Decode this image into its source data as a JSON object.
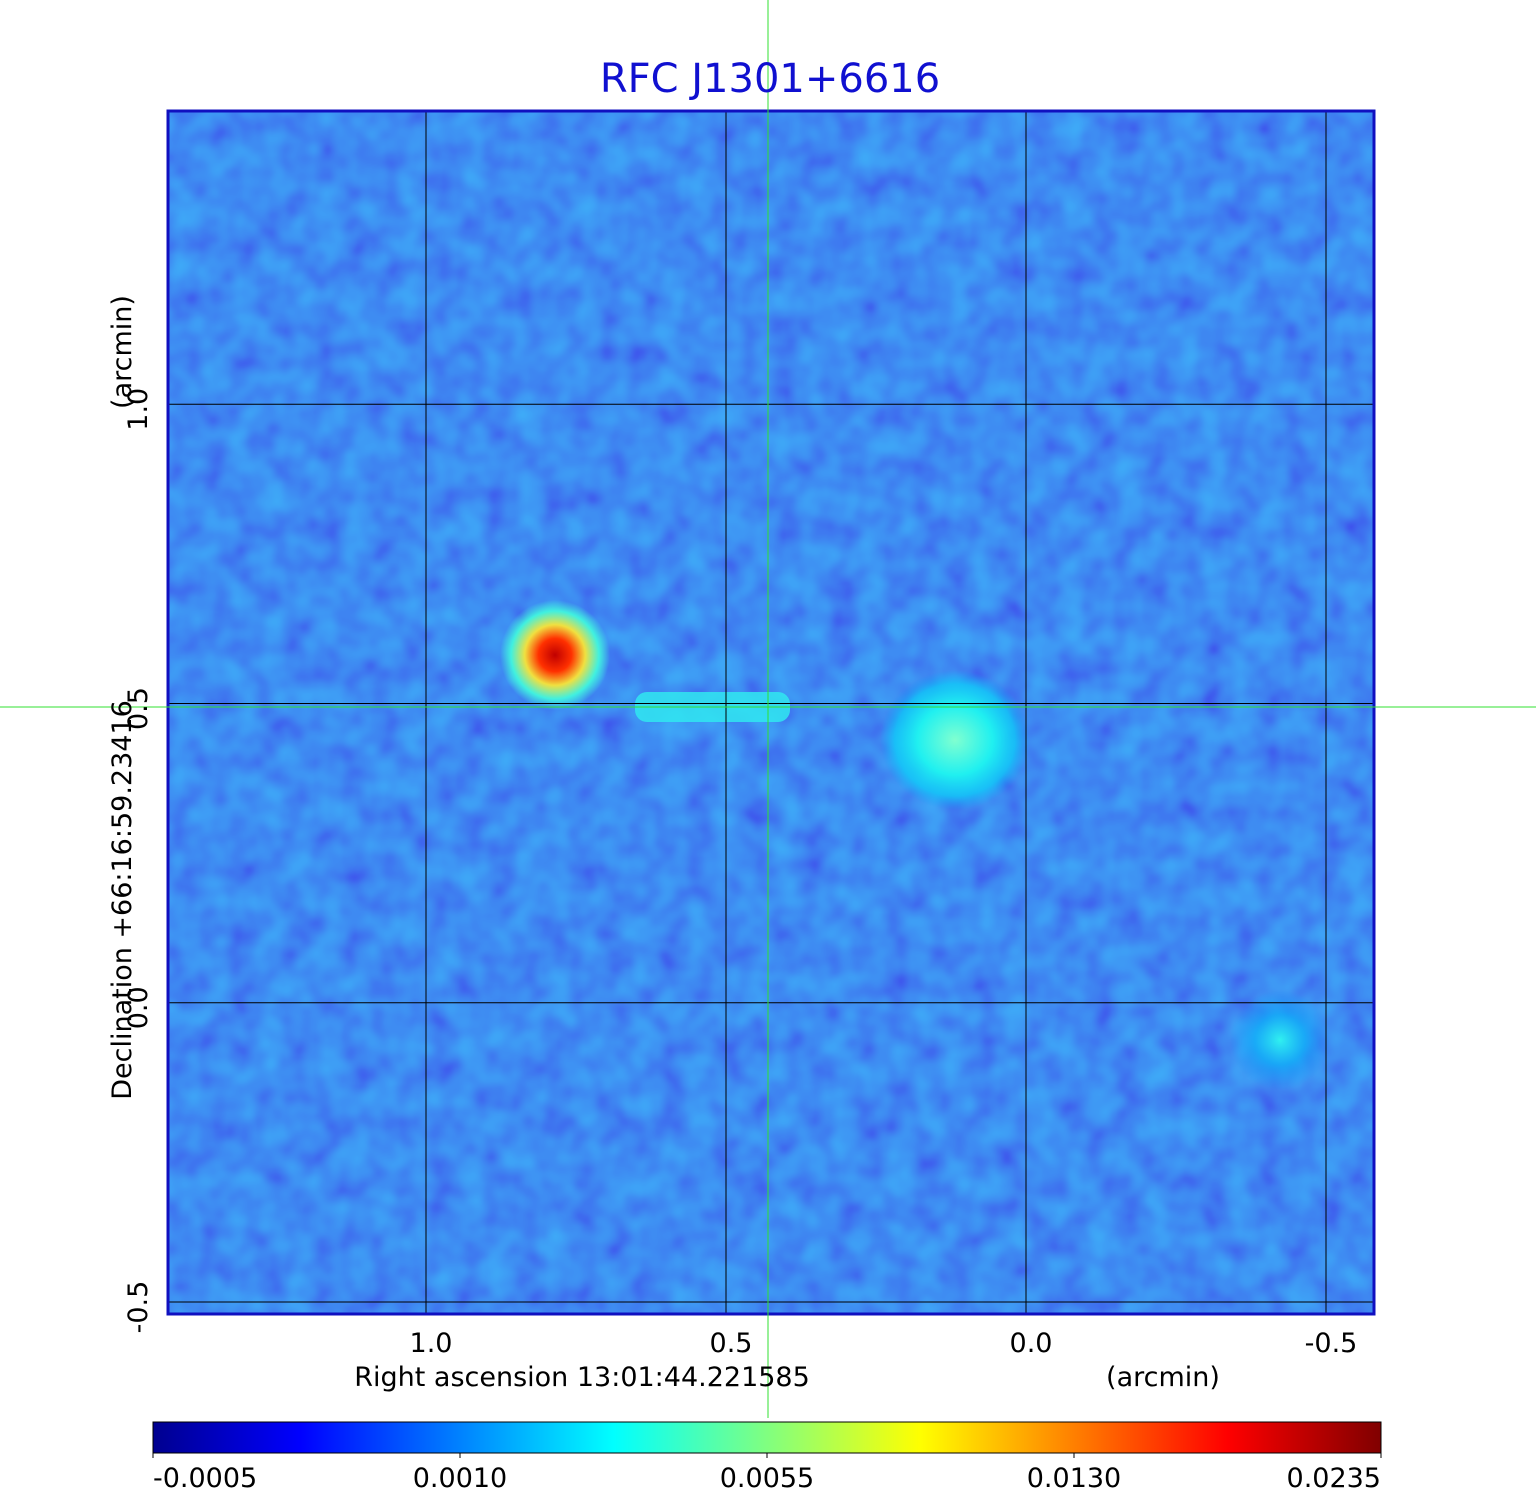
{
  "chart_data": {
    "type": "image",
    "title": "RFC J1301+6616",
    "x_label": "Right ascension  13:01:44.221585",
    "x_unit": "(arcmin)",
    "y_label": "Declination  +66:16:59.23416",
    "y_unit": "(arcmin)",
    "xlim": [
      1.43,
      -0.58
    ],
    "ylim": [
      -0.52,
      1.49
    ],
    "xticks": [
      {
        "value": 1,
        "label": "1.0"
      },
      {
        "value": 0.5,
        "label": "0.5"
      },
      {
        "value": 0,
        "label": "0.0"
      },
      {
        "value": -0.5,
        "label": "-0.5"
      }
    ],
    "yticks": [
      {
        "value": -0.5,
        "label": "-0.5"
      },
      {
        "value": 0,
        "label": "0.0"
      },
      {
        "value": 0.5,
        "label": "0.5"
      },
      {
        "value": 1,
        "label": "1.0"
      }
    ],
    "grid": true,
    "colorbar_ticks": [
      {
        "value": -0.0005,
        "label": "-0.0005"
      },
      {
        "value": 0.001,
        "label": "0.0010"
      },
      {
        "value": 0.0055,
        "label": "0.0055"
      },
      {
        "value": 0.013,
        "label": "0.0130"
      },
      {
        "value": 0.0235,
        "label": "0.0235"
      }
    ]
  }
}
